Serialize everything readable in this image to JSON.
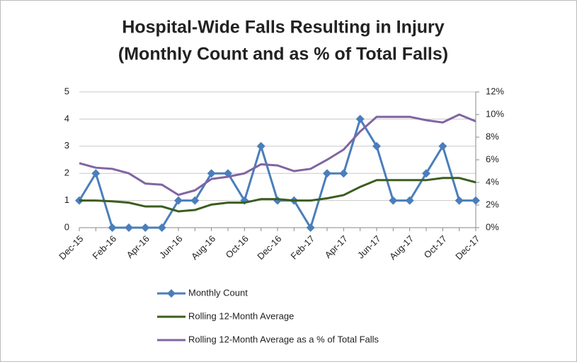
{
  "chart_data": {
    "type": "line",
    "title": "Hospital-Wide Falls Resulting in Injury",
    "subtitle": "(Monthly Count and as % of Total Falls)",
    "categories": [
      "Dec-15",
      null,
      "Feb-16",
      null,
      "Apr-16",
      null,
      "Jun-16",
      null,
      "Aug-16",
      null,
      "Oct-16",
      null,
      "Dec-16",
      null,
      "Feb-17",
      null,
      "Apr-17",
      null,
      "Jun-17",
      null,
      "Aug-17",
      null,
      "Oct-17",
      null,
      "Dec-17"
    ],
    "series": [
      {
        "name": "Monthly Count",
        "color": "#4a7ebb",
        "marker": "diamond",
        "values": [
          1,
          2,
          0,
          0,
          0,
          0,
          1,
          1,
          2,
          2,
          1,
          3,
          1,
          1,
          0,
          2,
          2,
          4,
          3,
          1,
          1,
          2,
          3,
          1,
          1
        ]
      },
      {
        "name": "Rolling 12-Month Average",
        "color": "#3b5e1f",
        "values": [
          1.0,
          1.0,
          0.97,
          0.92,
          0.78,
          0.78,
          0.6,
          0.65,
          0.85,
          0.92,
          0.92,
          1.05,
          1.05,
          1.0,
          1.0,
          1.08,
          1.2,
          1.5,
          1.75,
          1.75,
          1.75,
          1.75,
          1.83,
          1.83,
          1.67
        ]
      },
      {
        "name": "Rolling 12-Month Average as a % of Total Falls",
        "color": "#8064a2",
        "axis": "y2",
        "values": [
          5.7,
          5.3,
          5.2,
          4.8,
          3.9,
          3.8,
          2.9,
          3.3,
          4.3,
          4.5,
          4.8,
          5.6,
          5.5,
          5.0,
          5.2,
          6.0,
          6.9,
          8.5,
          9.8,
          9.8,
          9.8,
          9.5,
          9.3,
          10.0,
          9.4
        ]
      }
    ],
    "ylim": [
      0,
      5
    ],
    "yticks": [
      0,
      1,
      2,
      3,
      4,
      5
    ],
    "y2lim": [
      0,
      12
    ],
    "y2ticks": [
      {
        "value": 0,
        "label": "0%"
      },
      {
        "value": 2,
        "label": "2%"
      },
      {
        "value": 4,
        "label": "4%"
      },
      {
        "value": 6,
        "label": "6%"
      },
      {
        "value": 8,
        "label": "8%"
      },
      {
        "value": 10,
        "label": "10%"
      },
      {
        "value": 12,
        "label": "12%"
      }
    ],
    "grid": true,
    "legend": "bottom"
  }
}
